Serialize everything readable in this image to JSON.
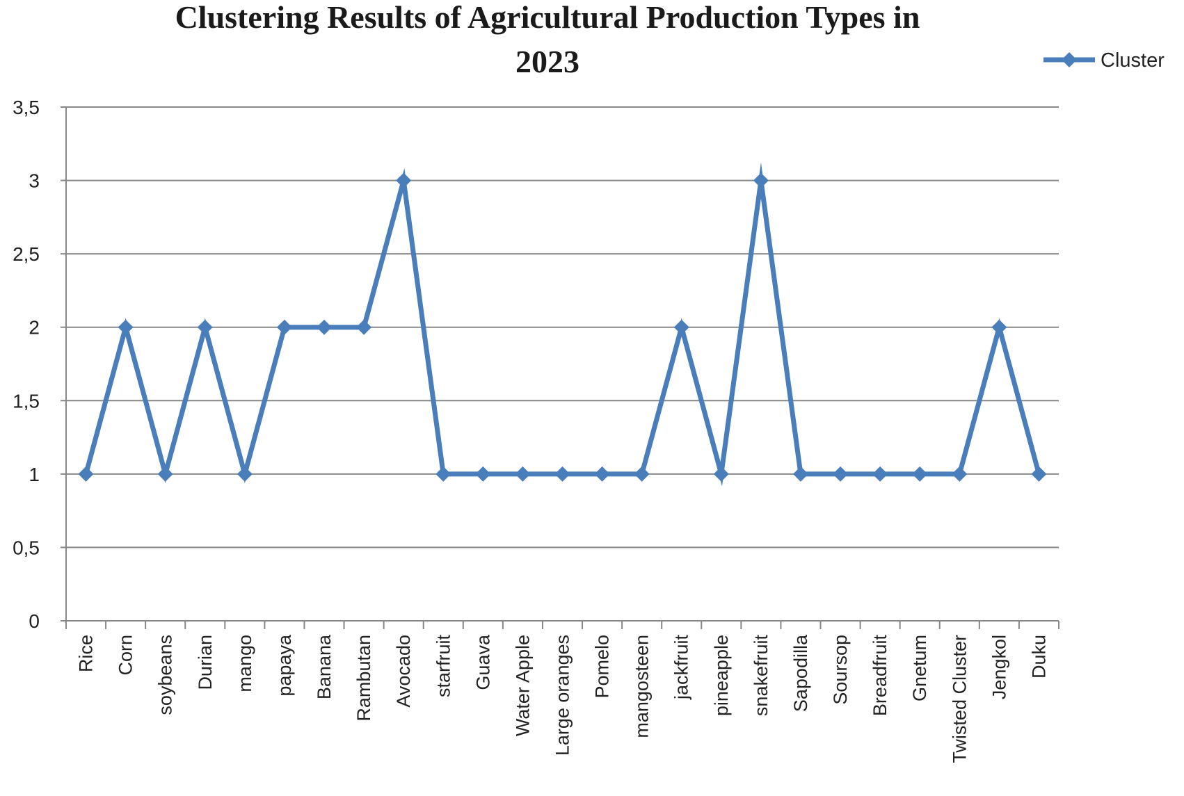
{
  "chart_data": {
    "type": "line",
    "title": "Clustering Results of Agricultural Production Types in 2023",
    "title_lines": [
      "Clustering Results of Agricultural Production Types in",
      "2023"
    ],
    "xlabel": "",
    "ylabel": "",
    "categories": [
      "Rice",
      "Corn",
      "soybeans",
      "Durian",
      "mango",
      "papaya",
      "Banana",
      "Rambutan",
      "Avocado",
      "starfruit",
      "Guava",
      "Water Apple",
      "Large oranges",
      "Pomelo",
      "mangosteen",
      "jackfruit",
      "pineapple",
      "snakefruit",
      "Sapodilla",
      "Soursop",
      "Breadfruit",
      "Gnetum",
      "Twisted Cluster",
      "Jengkol",
      "Duku"
    ],
    "series": [
      {
        "name": "Cluster",
        "color": "#4a7ebb",
        "marker": "diamond",
        "values": [
          1,
          2,
          1,
          2,
          1,
          2,
          2,
          2,
          3,
          1,
          1,
          1,
          1,
          1,
          1,
          2,
          1,
          3,
          1,
          1,
          1,
          1,
          1,
          2,
          1
        ]
      }
    ],
    "ylim": [
      0,
      3.5
    ],
    "y_ticks": [
      0,
      0.5,
      1,
      1.5,
      2,
      2.5,
      3,
      3.5
    ],
    "y_tick_labels": [
      "0",
      "0,5",
      "1",
      "1,5",
      "2",
      "2,5",
      "3",
      "3,5"
    ],
    "grid": true,
    "gridline_color": "#878787",
    "legend_position": "top-right"
  }
}
